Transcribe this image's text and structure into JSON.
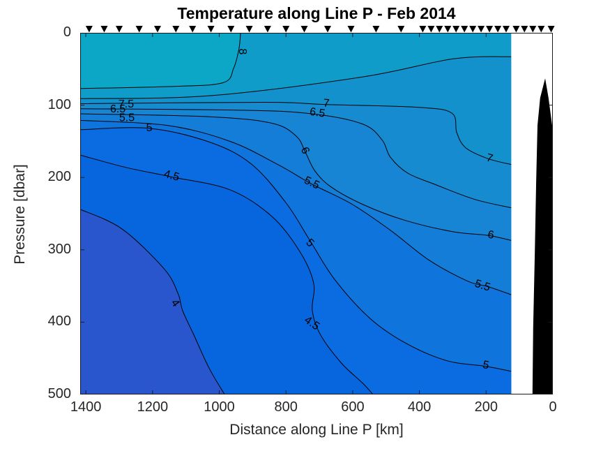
{
  "figure": {
    "title": "Temperature along Line P - Feb 2014",
    "xlabel": "Distance along Line P [km]",
    "ylabel": "Pressure [dbar]"
  },
  "chart_data": {
    "type": "filled_contour",
    "title": "Temperature along Line P - Feb 2014",
    "xlabel": "Distance along Line P [km]",
    "ylabel": "Pressure [dbar]",
    "x_axis": {
      "ticks": [
        1400,
        1200,
        1000,
        800,
        600,
        400,
        200,
        0
      ],
      "reversed": true
    },
    "y_axis": {
      "ticks": [
        0,
        100,
        200,
        300,
        400,
        500
      ],
      "reversed": true
    },
    "xlim": [
      1417,
      0
    ],
    "ylim": [
      0,
      500
    ],
    "grid": false,
    "axis_color": "#1a1a1a",
    "text_color": "#262626",
    "contour_line_color": "#000000",
    "levels": [
      4,
      4.5,
      5,
      5.5,
      6,
      6.5,
      7,
      7.5,
      8
    ],
    "band_top_color": "#0ca6c6",
    "band_colors": [
      {
        "range": "3.5-4",
        "color": "#2956cd"
      },
      {
        "range": "4-4.5",
        "color": "#0765de"
      },
      {
        "range": "4.5-5",
        "color": "#0b6be0"
      },
      {
        "range": "5-5.5",
        "color": "#0f74dc"
      },
      {
        "range": "5.5-6",
        "color": "#147dd8"
      },
      {
        "range": "6-6.5",
        "color": "#1884d4"
      },
      {
        "range": "6.5-7",
        "color": "#168bd0"
      },
      {
        "range": "7-7.5",
        "color": "#1391cc"
      },
      {
        "range": "7.5-8",
        "color": "#0f9cc9"
      },
      {
        "range": "8-8.5",
        "color": "#0ca6c6"
      }
    ],
    "data_min_km": 125,
    "contours": [
      {
        "level": 8,
        "fill_below": "#0f9cc9",
        "points": [
          [
            1417,
            77
          ],
          [
            1135,
            74
          ],
          [
            989,
            69
          ],
          [
            957,
            49
          ],
          [
            941,
            22
          ],
          [
            936,
            0
          ]
        ],
        "close": [
          [
            125,
            0
          ],
          [
            125,
            500
          ],
          [
            1417,
            500
          ]
        ],
        "labels": [
          {
            "text": "8",
            "km": 932,
            "dbar": 26,
            "rot": 90
          }
        ]
      },
      {
        "level": 7.5,
        "fill_below": "#1391cc",
        "points": [
          [
            1417,
            91
          ],
          [
            1030,
            87
          ],
          [
            571,
            61
          ],
          [
            299,
            36
          ],
          [
            125,
            33
          ]
        ],
        "close": [
          [
            125,
            500
          ],
          [
            1417,
            500
          ]
        ],
        "labels": [
          {
            "text": "7.5",
            "km": 1279,
            "dbar": 99,
            "rot": 0
          }
        ]
      },
      {
        "level": 7,
        "fill_below": "#168bd0",
        "points": [
          [
            1417,
            98
          ],
          [
            863,
            96
          ],
          [
            685,
            99
          ],
          [
            403,
            103
          ],
          [
            303,
            111
          ],
          [
            288,
            138
          ],
          [
            261,
            159
          ],
          [
            194,
            174
          ],
          [
            125,
            182
          ]
        ],
        "close": [
          [
            125,
            500
          ],
          [
            1417,
            500
          ]
        ],
        "labels": [
          {
            "text": "7",
            "km": 679,
            "dbar": 98,
            "rot": 5
          },
          {
            "text": "7",
            "km": 190,
            "dbar": 174,
            "rot": 15
          }
        ]
      },
      {
        "level": 6.5,
        "fill_below": "#1884d4",
        "points": [
          [
            1417,
            105
          ],
          [
            926,
            107
          ],
          [
            721,
            112
          ],
          [
            571,
            126
          ],
          [
            512,
            148
          ],
          [
            487,
            172
          ],
          [
            435,
            194
          ],
          [
            351,
            210
          ],
          [
            236,
            230
          ],
          [
            125,
            242
          ]
        ],
        "close": [
          [
            125,
            500
          ],
          [
            1417,
            500
          ]
        ],
        "labels": [
          {
            "text": "6.5",
            "km": 706,
            "dbar": 111,
            "rot": 8
          },
          {
            "text": "6.5",
            "km": 1304,
            "dbar": 106,
            "rot": 0
          }
        ]
      },
      {
        "level": 6,
        "fill_below": "#147dd8",
        "points": [
          [
            1417,
            112
          ],
          [
            1030,
            116
          ],
          [
            842,
            125
          ],
          [
            769,
            143
          ],
          [
            742,
            165
          ],
          [
            713,
            191
          ],
          [
            665,
            213
          ],
          [
            571,
            237
          ],
          [
            445,
            259
          ],
          [
            299,
            275
          ],
          [
            194,
            280
          ],
          [
            125,
            287
          ]
        ],
        "close": [
          [
            125,
            500
          ],
          [
            1417,
            500
          ]
        ],
        "labels": [
          {
            "text": "6",
            "km": 744,
            "dbar": 163,
            "rot": 65
          },
          {
            "text": "6",
            "km": 186,
            "dbar": 280,
            "rot": 8
          }
        ]
      },
      {
        "level": 5.5,
        "fill_below": "#0f74dc",
        "points": [
          [
            1417,
            121
          ],
          [
            1156,
            128
          ],
          [
            968,
            150
          ],
          [
            821,
            183
          ],
          [
            723,
            209
          ],
          [
            602,
            237
          ],
          [
            487,
            273
          ],
          [
            372,
            314
          ],
          [
            257,
            343
          ],
          [
            194,
            351
          ],
          [
            125,
            362
          ]
        ],
        "close": [
          [
            125,
            500
          ],
          [
            1417,
            500
          ]
        ],
        "labels": [
          {
            "text": "5.5",
            "km": 723,
            "dbar": 208,
            "rot": 25
          },
          {
            "text": "5.5",
            "km": 211,
            "dbar": 350,
            "rot": 18
          },
          {
            "text": "5.5",
            "km": 1277,
            "dbar": 118,
            "rot": 0
          }
        ]
      },
      {
        "level": 5,
        "fill_below": "#0b6be0",
        "points": [
          [
            1417,
            134
          ],
          [
            1212,
            132
          ],
          [
            1030,
            151
          ],
          [
            905,
            181
          ],
          [
            800,
            235
          ],
          [
            727,
            288
          ],
          [
            654,
            341
          ],
          [
            550,
            394
          ],
          [
            445,
            428
          ],
          [
            320,
            453
          ],
          [
            201,
            461
          ],
          [
            125,
            468
          ]
        ],
        "close": [
          [
            125,
            500
          ],
          [
            1417,
            500
          ]
        ],
        "labels": [
          {
            "text": "5",
            "km": 1210,
            "dbar": 132,
            "rot": 0
          },
          {
            "text": "5",
            "km": 729,
            "dbar": 291,
            "rot": 45
          },
          {
            "text": "5",
            "km": 201,
            "dbar": 460,
            "rot": 12
          }
        ]
      },
      {
        "level": 4.5,
        "fill_below": "#0765de",
        "points": [
          [
            1417,
            169
          ],
          [
            1281,
            186
          ],
          [
            1145,
            199
          ],
          [
            968,
            217
          ],
          [
            842,
            254
          ],
          [
            759,
            302
          ],
          [
            717,
            346
          ],
          [
            721,
            384
          ],
          [
            696,
            418
          ],
          [
            633,
            457
          ],
          [
            571,
            484
          ],
          [
            539,
            500
          ]
        ],
        "close": [
          [
            1417,
            500
          ]
        ],
        "labels": [
          {
            "text": "4.5",
            "km": 1143,
            "dbar": 198,
            "rot": 15
          },
          {
            "text": "4.5",
            "km": 723,
            "dbar": 402,
            "rot": 35
          }
        ]
      },
      {
        "level": 4,
        "fill_below": "#2956cd",
        "points": [
          [
            1417,
            244
          ],
          [
            1292,
            271
          ],
          [
            1166,
            326
          ],
          [
            1124,
            360
          ],
          [
            1110,
            384
          ],
          [
            1076,
            418
          ],
          [
            1030,
            464
          ],
          [
            984,
            500
          ]
        ],
        "close": [
          [
            1417,
            500
          ]
        ],
        "labels": [
          {
            "text": "4",
            "km": 1133,
            "dbar": 374,
            "rot": 55
          }
        ]
      }
    ],
    "station_markers": {
      "shape": "filled-down-triangle",
      "color": "#000000",
      "positions_km": [
        1390,
        1345,
        1300,
        1240,
        1185,
        1130,
        1080,
        1025,
        965,
        910,
        855,
        800,
        745,
        675,
        605,
        530,
        455,
        390,
        365,
        340,
        315,
        290,
        265,
        240,
        215,
        190,
        165,
        140,
        110,
        85,
        60,
        35,
        5
      ]
    },
    "bathymetry_polygon": [
      [
        23,
        63
      ],
      [
        38,
        90
      ],
      [
        46,
        128
      ],
      [
        50,
        206
      ],
      [
        54,
        302
      ],
      [
        59,
        408
      ],
      [
        61,
        500
      ],
      [
        2,
        500
      ],
      [
        2,
        128
      ],
      [
        13,
        90
      ]
    ],
    "bathymetry_color": "#000000"
  }
}
